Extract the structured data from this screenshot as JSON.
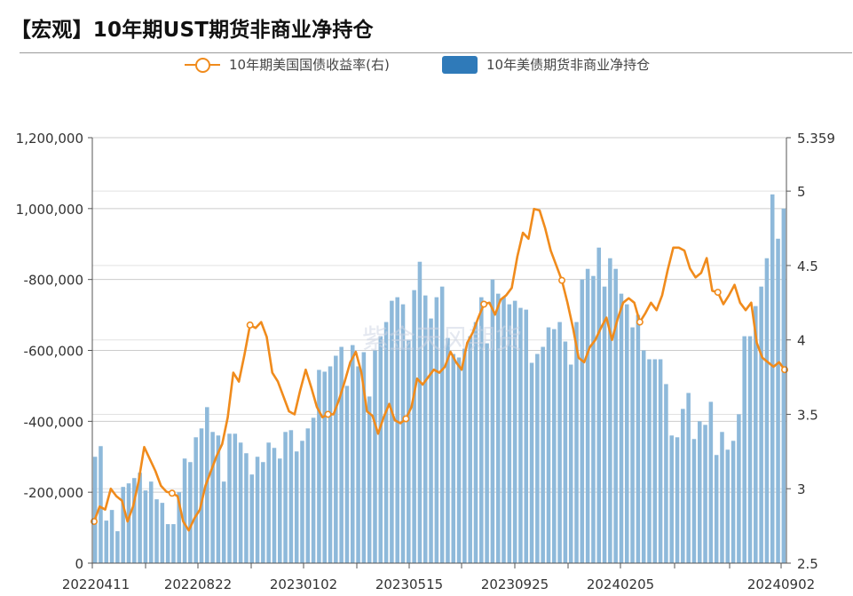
{
  "title": "【宏观】10年期UST期货非商业净持仓",
  "watermark": "紫金天风期货",
  "legend": {
    "yield_label": "10年期美国国债收益率(右)",
    "position_label": "10年美债期货非商业净持仓"
  },
  "colors": {
    "bar": "#8EB9DA",
    "line": "#F08B1C",
    "legend_bar": "#2F7AB9",
    "grid": "#cccccc",
    "axis": "#555555"
  },
  "chart_data": {
    "type": "bar",
    "grid": true,
    "legend_position": "top",
    "x_tick_labels": [
      "20220411",
      "20220822",
      "20230102",
      "20230515",
      "20230925",
      "20240205",
      "20240902"
    ],
    "left_axis": {
      "ticks": [
        0,
        200000,
        400000,
        600000,
        800000,
        1000000,
        1200000
      ],
      "tick_labels": [
        "0",
        "-200,000",
        "-400,000",
        "-600,000",
        "-800,000",
        "1,000,000",
        "1,200,000"
      ],
      "ylim": [
        0,
        1200000
      ]
    },
    "right_axis": {
      "ticks": [
        2.5,
        3,
        3.5,
        4,
        4.5,
        5,
        5.359
      ],
      "tick_labels": [
        "2.5",
        "3",
        "3.5",
        "4",
        "4.5",
        "5",
        "5.359"
      ],
      "ylim": [
        2.5,
        5.359
      ]
    },
    "series": [
      {
        "name": "10年美债期货非商业净持仓",
        "type": "bar",
        "axis": "left",
        "values": [
          300000,
          330000,
          120000,
          150000,
          90000,
          215000,
          225000,
          240000,
          255000,
          205000,
          230000,
          180000,
          170000,
          110000,
          110000,
          200000,
          295000,
          285000,
          355000,
          380000,
          440000,
          370000,
          360000,
          230000,
          365000,
          365000,
          340000,
          310000,
          250000,
          300000,
          285000,
          340000,
          325000,
          295000,
          370000,
          375000,
          315000,
          345000,
          380000,
          410000,
          545000,
          540000,
          555000,
          585000,
          610000,
          500000,
          615000,
          555000,
          595000,
          470000,
          600000,
          640000,
          680000,
          740000,
          750000,
          730000,
          630000,
          770000,
          850000,
          755000,
          690000,
          750000,
          780000,
          635000,
          590000,
          580000,
          605000,
          640000,
          680000,
          750000,
          620000,
          800000,
          760000,
          750000,
          730000,
          740000,
          720000,
          715000,
          565000,
          590000,
          610000,
          665000,
          660000,
          680000,
          625000,
          560000,
          680000,
          800000,
          830000,
          810000,
          890000,
          780000,
          860000,
          830000,
          760000,
          730000,
          665000,
          700000,
          600000,
          575000,
          575000,
          575000,
          505000,
          360000,
          355000,
          435000,
          480000,
          350000,
          400000,
          390000,
          455000,
          305000,
          370000,
          320000,
          345000,
          420000,
          640000,
          640000,
          725000,
          780000,
          860000,
          1040000,
          915000,
          1000000
        ],
        "note": "Plotted bar heights; left axis tick labels read as printed."
      },
      {
        "name": "10年期美国国债收益率(右)",
        "type": "line",
        "axis": "right",
        "values": [
          2.78,
          2.88,
          2.86,
          3.0,
          2.95,
          2.92,
          2.78,
          2.88,
          3.05,
          3.28,
          3.2,
          3.12,
          3.02,
          2.98,
          2.97,
          2.95,
          2.78,
          2.72,
          2.8,
          2.86,
          3.02,
          3.12,
          3.22,
          3.3,
          3.48,
          3.78,
          3.72,
          3.9,
          4.1,
          4.08,
          4.12,
          4.02,
          3.78,
          3.72,
          3.62,
          3.52,
          3.5,
          3.66,
          3.8,
          3.68,
          3.55,
          3.48,
          3.5,
          3.5,
          3.6,
          3.72,
          3.85,
          3.92,
          3.78,
          3.52,
          3.49,
          3.37,
          3.48,
          3.57,
          3.46,
          3.44,
          3.47,
          3.55,
          3.74,
          3.7,
          3.75,
          3.8,
          3.78,
          3.82,
          3.92,
          3.85,
          3.8,
          3.98,
          4.05,
          4.15,
          4.24,
          4.25,
          4.17,
          4.27,
          4.3,
          4.35,
          4.56,
          4.72,
          4.68,
          4.88,
          4.87,
          4.75,
          4.6,
          4.5,
          4.4,
          4.25,
          4.08,
          3.88,
          3.85,
          3.95,
          4.0,
          4.08,
          4.15,
          4.0,
          4.14,
          4.25,
          4.28,
          4.25,
          4.12,
          4.18,
          4.25,
          4.2,
          4.3,
          4.47,
          4.62,
          4.62,
          4.6,
          4.48,
          4.42,
          4.45,
          4.55,
          4.33,
          4.32,
          4.24,
          4.3,
          4.37,
          4.25,
          4.2,
          4.25,
          3.98,
          3.88,
          3.85,
          3.82,
          3.85,
          3.8
        ]
      }
    ]
  }
}
